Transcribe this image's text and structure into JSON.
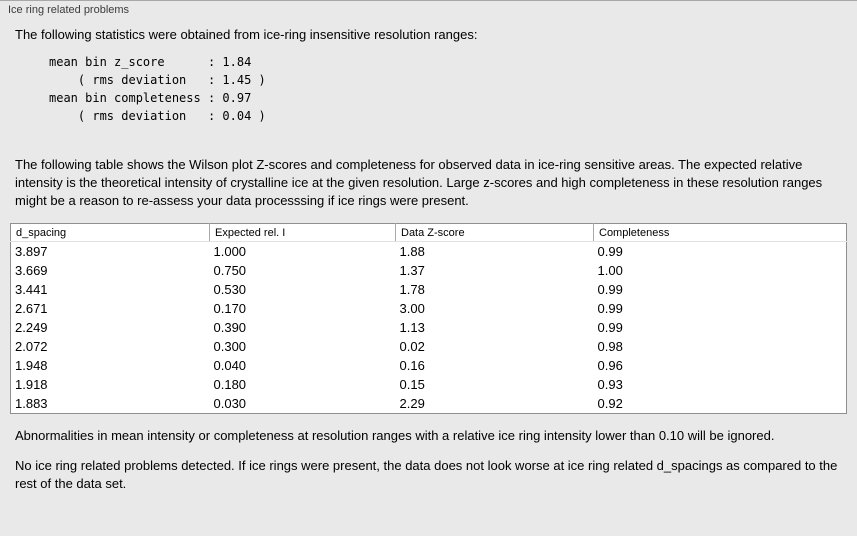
{
  "panel": {
    "title": "Ice ring related problems"
  },
  "stats": {
    "intro": "The following statistics were obtained from ice-ring insensitive resolution ranges:",
    "lines": [
      "mean bin z_score      : 1.84",
      "    ( rms deviation   : 1.45 )",
      "mean bin completeness : 0.97",
      "    ( rms deviation   : 0.04 )"
    ]
  },
  "table_description": "The following table shows the Wilson plot Z-scores and completeness for observed data in ice-ring sensitive areas. The expected relative intensity is the theoretical intensity of crystalline ice at the given resolution. Large z-scores and high completeness in these resolution ranges might be a reason to re-assess your data processsing if ice rings were present.",
  "table": {
    "headers": [
      "d_spacing",
      "Expected rel. I",
      "Data Z-score",
      "Completeness"
    ],
    "rows": [
      [
        "3.897",
        "1.000",
        "1.88",
        "0.99"
      ],
      [
        "3.669",
        "0.750",
        "1.37",
        "1.00"
      ],
      [
        "3.441",
        "0.530",
        "1.78",
        "0.99"
      ],
      [
        "2.671",
        "0.170",
        "3.00",
        "0.99"
      ],
      [
        "2.249",
        "0.390",
        "1.13",
        "0.99"
      ],
      [
        "2.072",
        "0.300",
        "0.02",
        "0.98"
      ],
      [
        "1.948",
        "0.040",
        "0.16",
        "0.96"
      ],
      [
        "1.918",
        "0.180",
        "0.15",
        "0.93"
      ],
      [
        "1.883",
        "0.030",
        "2.29",
        "0.92"
      ]
    ]
  },
  "notes": {
    "abnormalities": "Abnormalities in mean intensity or completeness at resolution ranges with a relative ice ring intensity lower than 0.10 will be ignored.",
    "conclusion": "No ice ring related problems detected. If ice rings were present, the data does not look worse at ice ring related d_spacings as compared to the rest of the data set."
  }
}
